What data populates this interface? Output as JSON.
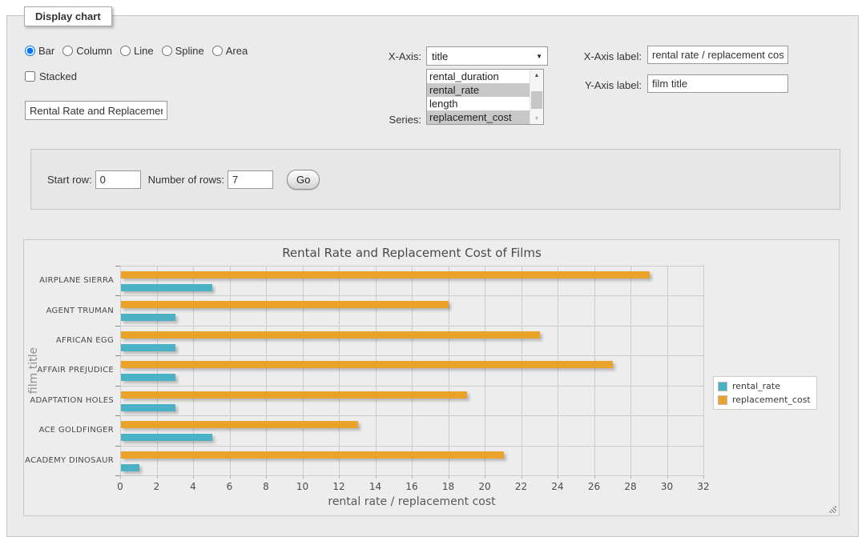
{
  "panel": {
    "legend": "Display chart"
  },
  "chart_type": {
    "options": [
      {
        "label": "Bar",
        "checked": true
      },
      {
        "label": "Column",
        "checked": false
      },
      {
        "label": "Line",
        "checked": false
      },
      {
        "label": "Spline",
        "checked": false
      },
      {
        "label": "Area",
        "checked": false
      }
    ]
  },
  "stacked": {
    "label": "Stacked",
    "checked": false
  },
  "title_input": {
    "value": "Rental Rate and Replacement Cost of Films"
  },
  "x_axis_select": {
    "label": "X-Axis:",
    "selected": "title"
  },
  "series_select": {
    "label": "Series:",
    "options": [
      {
        "label": "rental_duration",
        "selected": false
      },
      {
        "label": "rental_rate",
        "selected": true
      },
      {
        "label": "length",
        "selected": false
      },
      {
        "label": "replacement_cost",
        "selected": true
      }
    ]
  },
  "x_axis_label_field": {
    "label": "X-Axis label:",
    "value": "rental rate / replacement cost"
  },
  "y_axis_label_field": {
    "label": "Y-Axis label:",
    "value": "film title"
  },
  "row_form": {
    "start_row_label": "Start row:",
    "start_row_value": "0",
    "num_rows_label": "Number of rows:",
    "num_rows_value": "7",
    "go_label": "Go"
  },
  "chart_data": {
    "type": "bar",
    "orientation": "horizontal",
    "title": "Rental Rate and Replacement Cost of Films",
    "categories": [
      "AIRPLANE SIERRA",
      "AGENT TRUMAN",
      "AFRICAN EGG",
      "AFFAIR PREJUDICE",
      "ADAPTATION HOLES",
      "ACE GOLDFINGER",
      "ACADEMY DINOSAUR"
    ],
    "series": [
      {
        "name": "rental_rate",
        "color": "#4bb2c5",
        "values": [
          4.99,
          2.99,
          2.99,
          2.99,
          2.99,
          4.99,
          0.99
        ]
      },
      {
        "name": "replacement_cost",
        "color": "#eaa228",
        "values": [
          28.99,
          17.99,
          22.99,
          26.99,
          18.99,
          12.99,
          20.99
        ]
      }
    ],
    "xlabel": "rental rate / replacement cost",
    "ylabel": "film title",
    "xlim": [
      0,
      32
    ],
    "xtick_step": 2,
    "grid": true,
    "legend_position": "right",
    "bar_order_top_to_bottom": [
      "replacement_cost",
      "rental_rate"
    ]
  }
}
